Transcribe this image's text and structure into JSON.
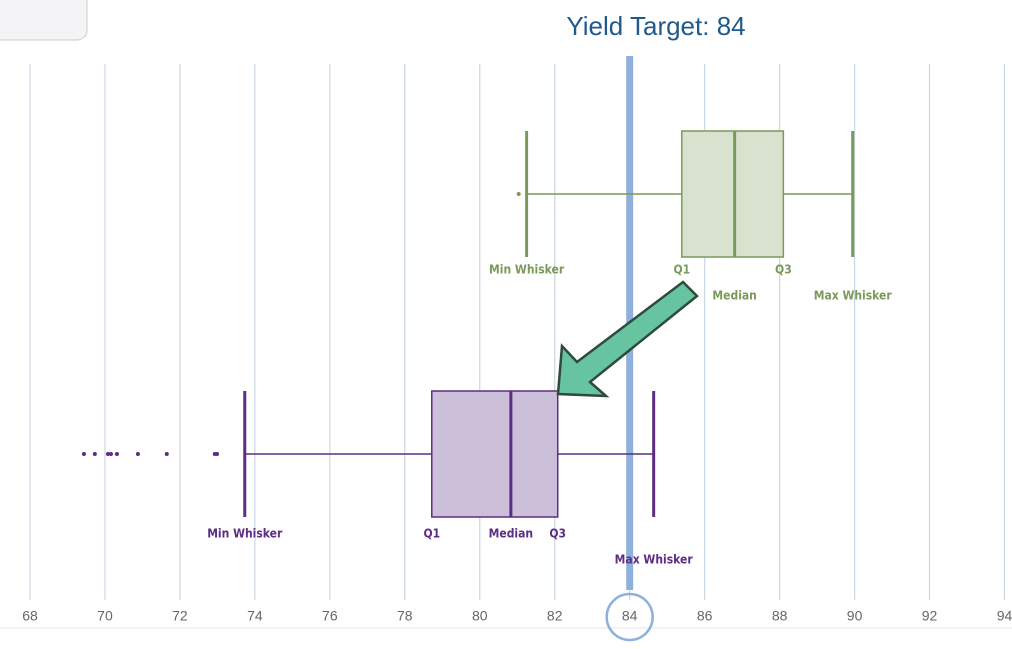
{
  "chart_data": {
    "type": "box",
    "xlim": [
      67.2,
      94.2
    ],
    "xticks": [
      68,
      70,
      72,
      74,
      76,
      78,
      80,
      82,
      84,
      86,
      88,
      90,
      92,
      94
    ],
    "grid": true,
    "target": {
      "label": "Yield Target: 84",
      "value": 84,
      "color": "#8fb0dd"
    },
    "boxes": [
      {
        "color": "#7a9a5a",
        "fill": "#d8e2cf",
        "min": 81.25,
        "q1": 85.39,
        "median": 86.8,
        "q3": 88.1,
        "max": 89.95,
        "outliers": [
          81.04
        ],
        "labels": [
          "Min Whisker",
          "Q1",
          "Median",
          "Q3",
          "Max Whisker"
        ]
      },
      {
        "color": "#5c2d82",
        "fill": "#cbbfd9",
        "min": 73.73,
        "q1": 78.72,
        "median": 80.83,
        "q3": 82.08,
        "max": 84.64,
        "outliers": [
          69.44,
          69.73,
          70.08,
          70.16,
          70.32,
          70.88,
          71.65,
          72.93,
          72.99
        ],
        "labels": [
          "Min Whisker",
          "Q1",
          "Median",
          "Q3",
          "Max Whisker"
        ]
      }
    ]
  }
}
